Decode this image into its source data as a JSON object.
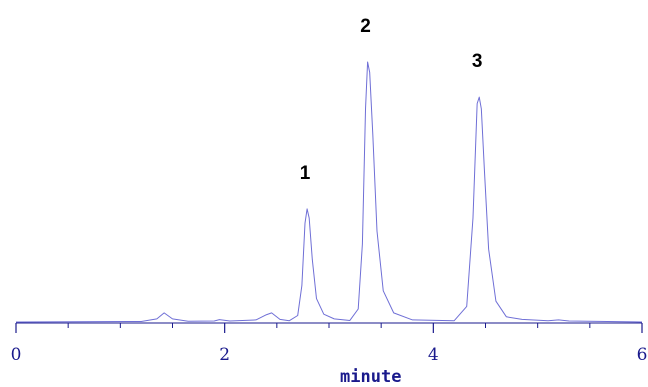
{
  "chart_data": {
    "type": "line",
    "title": "",
    "xlabel": "minute",
    "ylabel": "",
    "xlim": [
      0,
      6
    ],
    "ylim": [
      0,
      100
    ],
    "x_ticks": [
      0,
      2,
      4,
      6
    ],
    "x_tick_labels": [
      "0",
      "2",
      "4",
      "6"
    ],
    "grid": false,
    "legend": "none",
    "line_color": "#6f6fd6",
    "axis_color": "#1a1a8c",
    "peaks": [
      {
        "label": "1",
        "x": 2.78,
        "y": 43.5
      },
      {
        "label": "2",
        "x": 3.36,
        "y": 100
      },
      {
        "label": "3",
        "x": 4.43,
        "y": 86.5
      }
    ],
    "series": [
      {
        "x": [
          0,
          1.2,
          1.35,
          1.42,
          1.5,
          1.65,
          1.9,
          1.95,
          2.05,
          2.3,
          2.4,
          2.45,
          2.53,
          2.62,
          2.7,
          2.74,
          2.77,
          2.79,
          2.81,
          2.84,
          2.88,
          2.95,
          3.05,
          3.2,
          3.28,
          3.32,
          3.35,
          3.37,
          3.39,
          3.42,
          3.46,
          3.52,
          3.62,
          3.8,
          4.2,
          4.32,
          4.38,
          4.42,
          4.44,
          4.46,
          4.49,
          4.53,
          4.6,
          4.7,
          4.85,
          5.1,
          5.2,
          5.3,
          6.0
        ],
        "y": [
          0,
          0.2,
          1.2,
          3.5,
          1.2,
          0.3,
          0.4,
          0.9,
          0.4,
          0.8,
          2.8,
          3.5,
          1.0,
          0.5,
          2.5,
          14,
          38,
          43.5,
          40,
          24,
          9,
          3,
          1.2,
          0.6,
          5,
          30,
          82,
          100,
          96,
          72,
          35,
          12,
          3.5,
          0.8,
          0.5,
          6,
          40,
          84,
          86.5,
          82,
          58,
          28,
          8,
          2,
          1.0,
          0.5,
          0.8,
          0.4,
          0
        ]
      }
    ]
  }
}
